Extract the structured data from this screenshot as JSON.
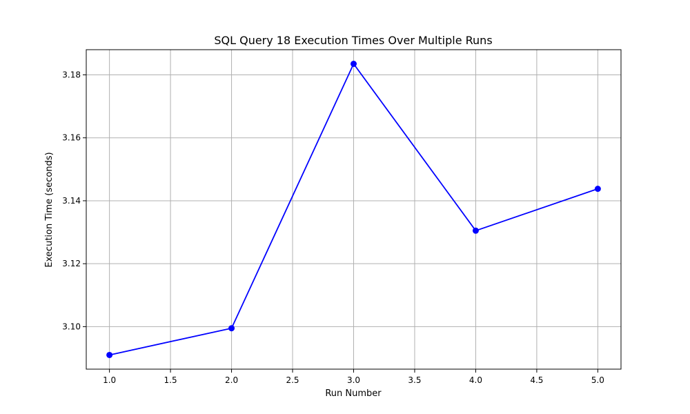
{
  "chart_data": {
    "type": "line",
    "title": "SQL Query 18 Execution Times Over Multiple Runs",
    "xlabel": "Run Number",
    "ylabel": "Execution Time (seconds)",
    "xlim": [
      0.81,
      5.19
    ],
    "ylim": [
      3.0865,
      3.188
    ],
    "xticks": [
      1.0,
      1.5,
      2.0,
      2.5,
      3.0,
      3.5,
      4.0,
      4.5,
      5.0
    ],
    "xtick_labels": [
      "1.0",
      "1.5",
      "2.0",
      "2.5",
      "3.0",
      "3.5",
      "4.0",
      "4.5",
      "5.0"
    ],
    "yticks": [
      3.1,
      3.12,
      3.14,
      3.16,
      3.18
    ],
    "ytick_labels": [
      "3.10",
      "3.12",
      "3.14",
      "3.16",
      "3.18"
    ],
    "grid": true,
    "series": [
      {
        "color": "#0000ff",
        "marker": "circle",
        "x": [
          1,
          2,
          3,
          4,
          5
        ],
        "y": [
          3.091,
          3.0995,
          3.1835,
          3.1305,
          3.1438
        ]
      }
    ]
  }
}
